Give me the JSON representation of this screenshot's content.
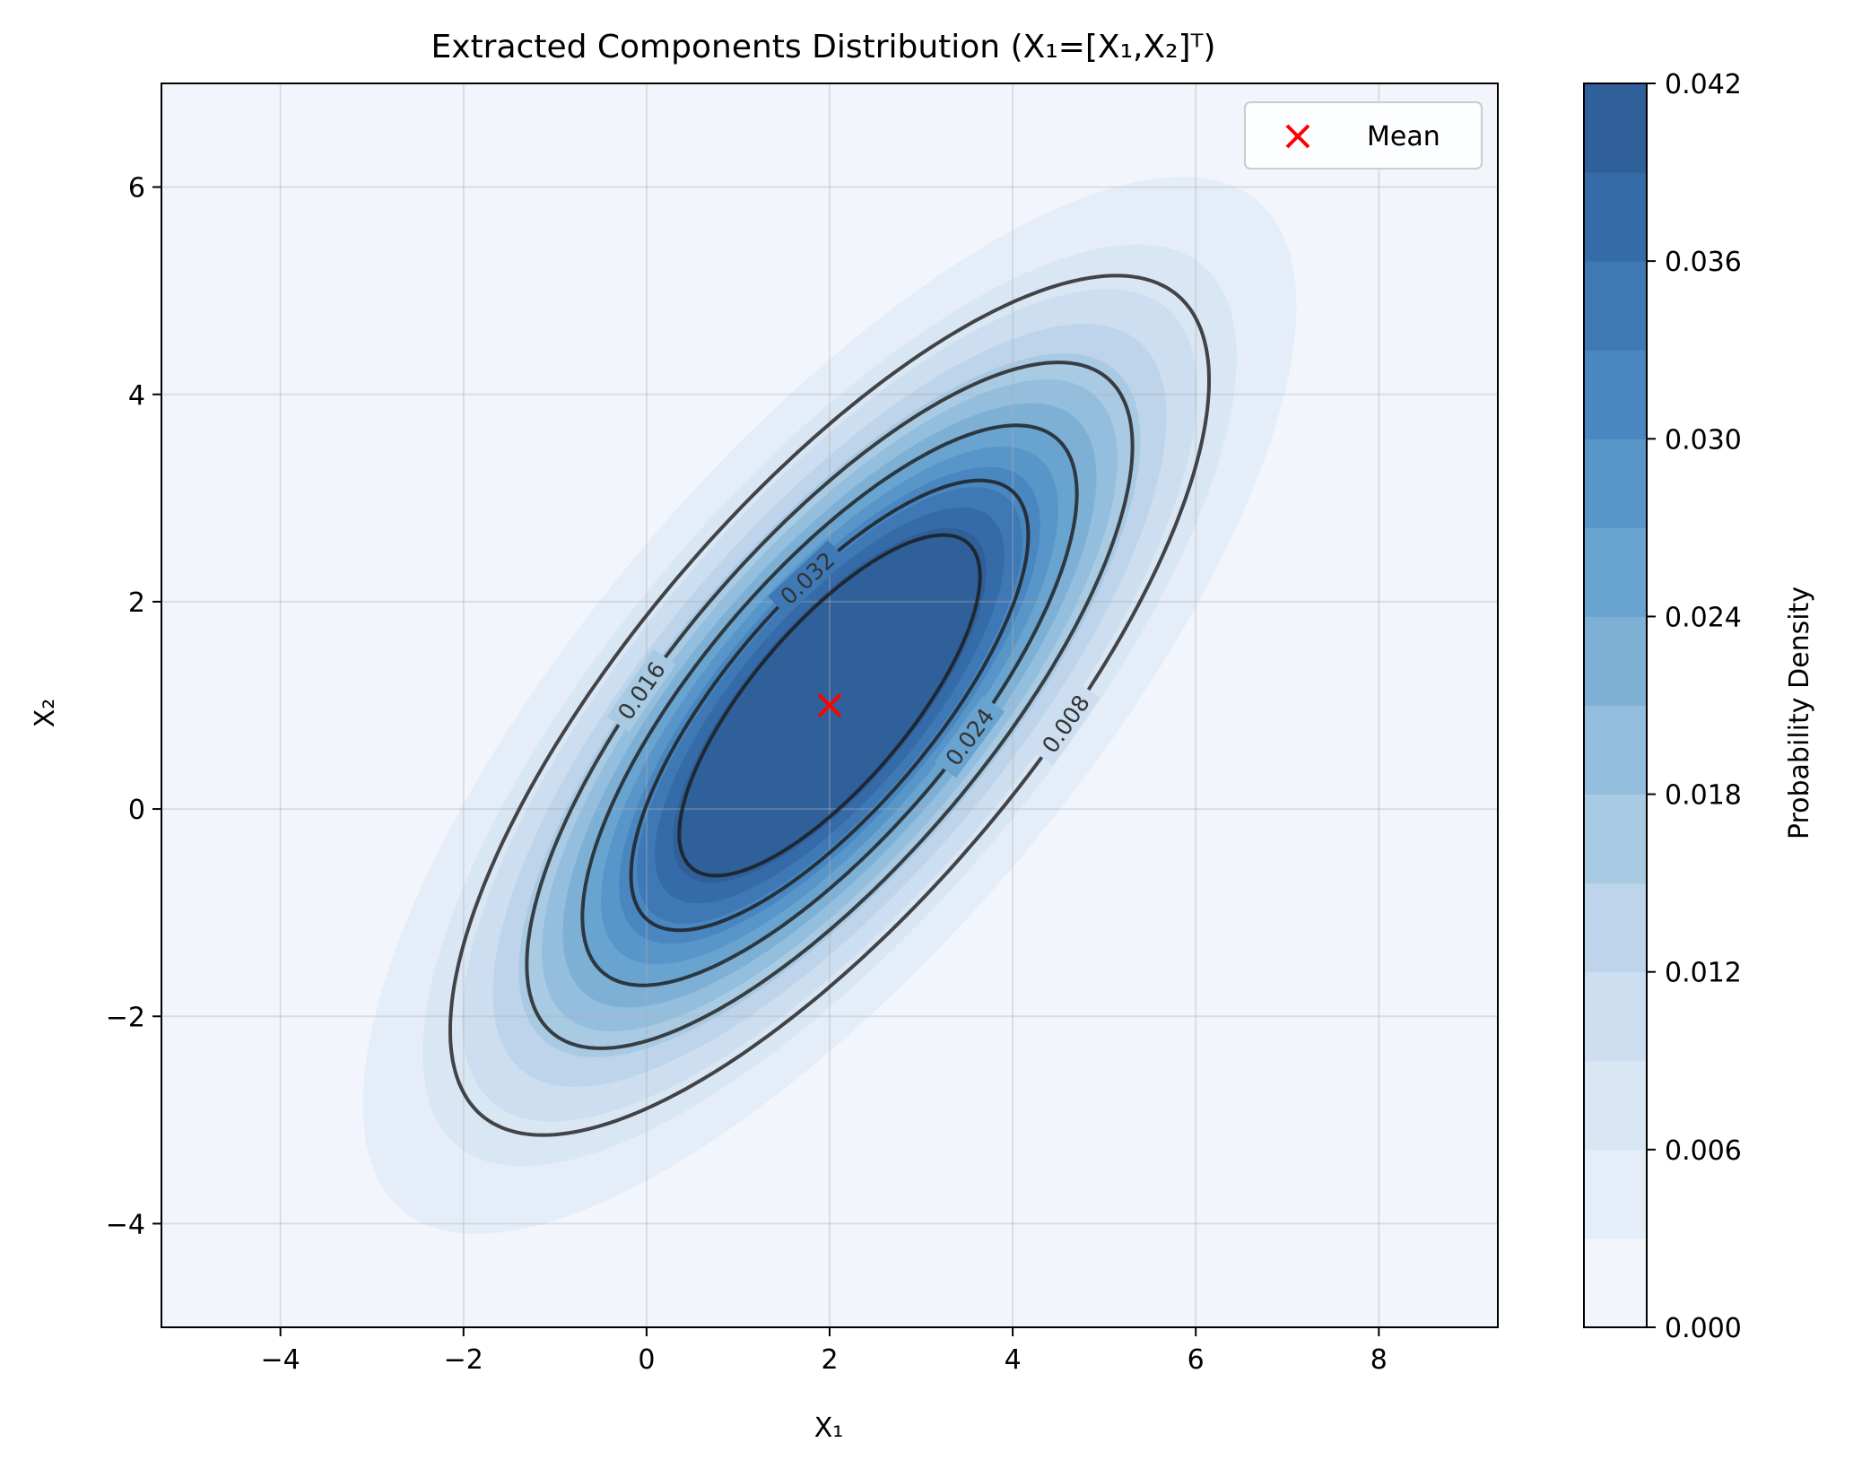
{
  "chart_data": {
    "type": "contour",
    "title": "Extracted Components Distribution (X₁=[X₁,X₂]ᵀ)",
    "xlabel": "X₁",
    "ylabel": "X₂",
    "xlim": [
      -5.3,
      9.3
    ],
    "ylim": [
      -5,
      7
    ],
    "xticks": [
      -4,
      -2,
      0,
      2,
      4,
      6,
      8
    ],
    "yticks": [
      -4,
      -2,
      0,
      2,
      4,
      6
    ],
    "xtick_labels": [
      "−4",
      "−2",
      "0",
      "2",
      "4",
      "6",
      "8"
    ],
    "ytick_labels": [
      "−4",
      "−2",
      "0",
      "2",
      "4",
      "6"
    ],
    "grid": true,
    "distribution": {
      "family": "bivariate normal",
      "mean": [
        2,
        1
      ],
      "covariance": [
        [
          4.5,
          3.4
        ],
        [
          3.4,
          4.5
        ]
      ]
    },
    "filled_levels": [
      0,
      0.003,
      0.006,
      0.009,
      0.012,
      0.015,
      0.018,
      0.021,
      0.024,
      0.027,
      0.03,
      0.033,
      0.036,
      0.039,
      0.042
    ],
    "fill_colors": [
      "#f2f6fc",
      "#e5eef8",
      "#d9e6f4",
      "#ccdeef",
      "#bdd4ea",
      "#a9cae3",
      "#94bedd",
      "#7eb0d6",
      "#69a3cf",
      "#5895c8",
      "#4a87c0",
      "#3e79b6",
      "#356ba8",
      "#30609a"
    ],
    "contour_lines": [
      {
        "level": 0.008,
        "label": "0.008"
      },
      {
        "level": 0.016,
        "label": "0.016"
      },
      {
        "level": 0.024,
        "label": "0.024"
      },
      {
        "level": 0.032,
        "label": "0.032"
      },
      {
        "level": 0.04,
        "label": ""
      }
    ],
    "mean_marker": {
      "x": 2,
      "y": 1,
      "color": "#ff0000"
    },
    "legend": {
      "position": "top-right",
      "entries": [
        "Mean"
      ]
    },
    "colorbar": {
      "label": "Probability Density",
      "range": [
        0,
        0.042
      ],
      "ticks": [
        "0.000",
        "0.006",
        "0.012",
        "0.018",
        "0.024",
        "0.030",
        "0.036",
        "0.042"
      ]
    }
  }
}
